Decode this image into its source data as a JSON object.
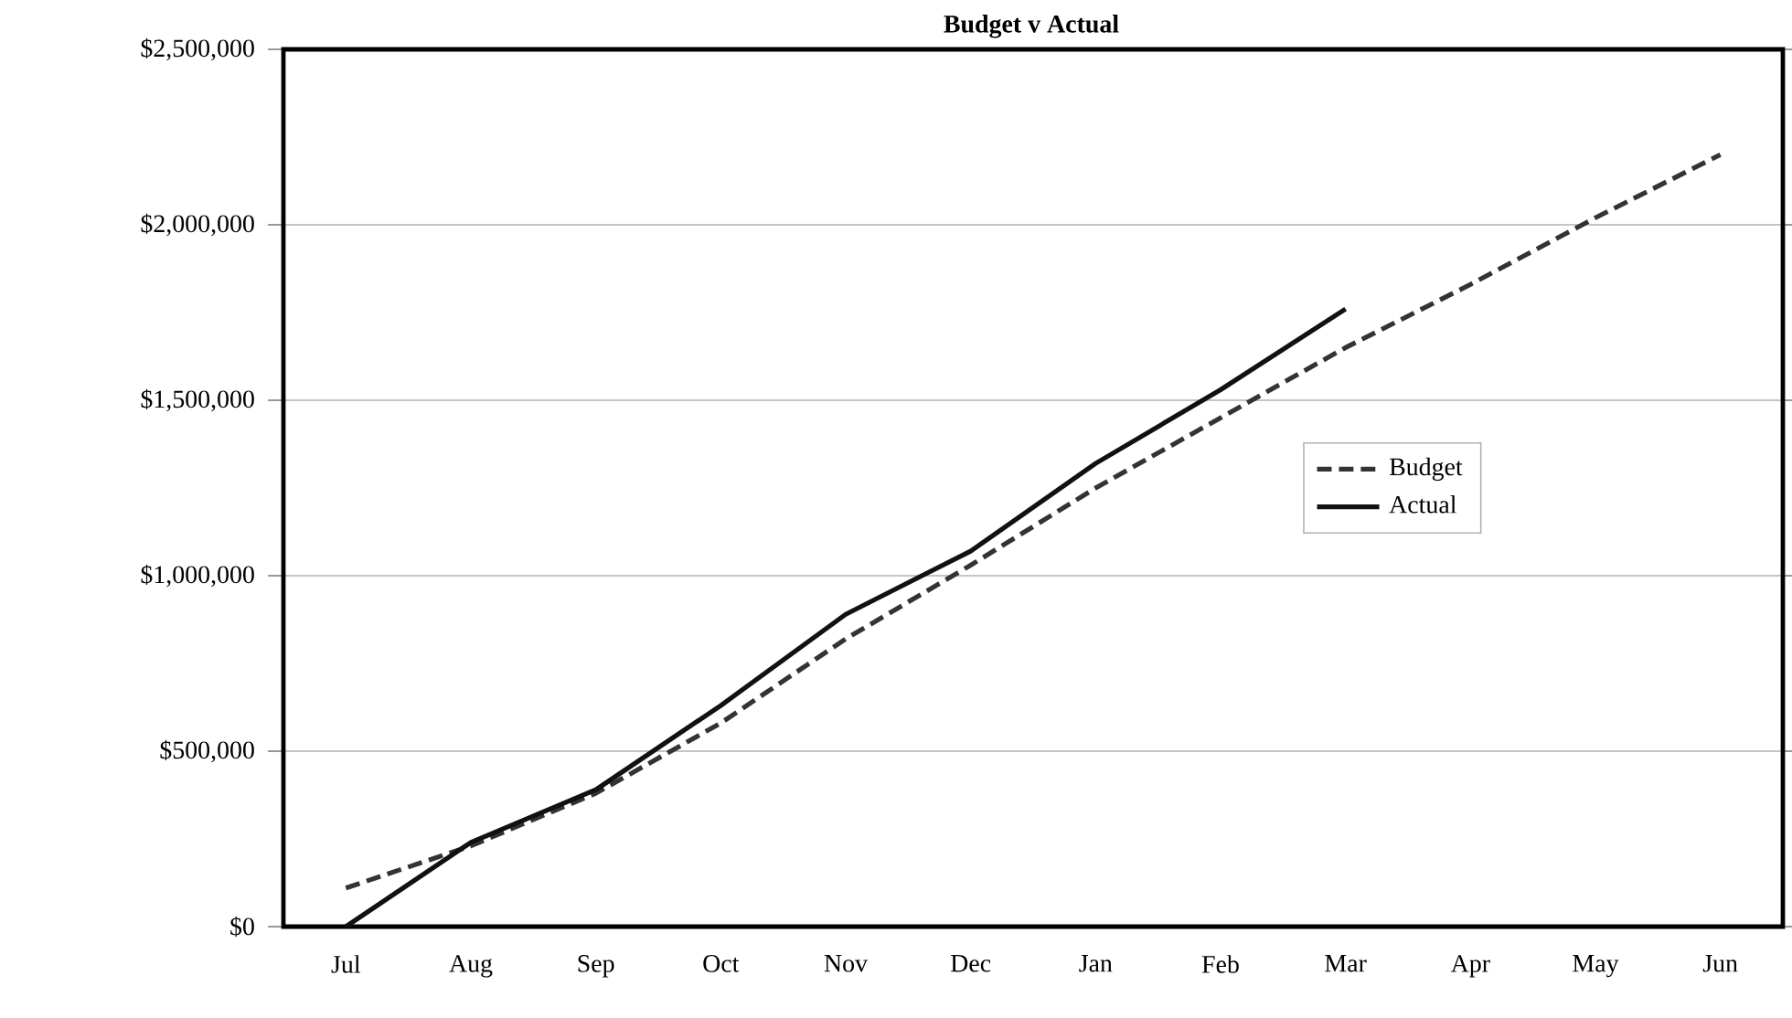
{
  "chart_data": {
    "type": "line",
    "title": "Budget v Actual",
    "categories": [
      "Jul",
      "Aug",
      "Sep",
      "Oct",
      "Nov",
      "Dec",
      "Jan",
      "Feb",
      "Mar",
      "Apr",
      "May",
      "Jun"
    ],
    "series": [
      {
        "name": "Budget",
        "color": "#333333",
        "line_style": "dashed",
        "values": [
          110000,
          230000,
          380000,
          580000,
          820000,
          1030000,
          1250000,
          1450000,
          1650000,
          1830000,
          2020000,
          2200000
        ]
      },
      {
        "name": "Actual",
        "color": "#111111",
        "line_style": "solid",
        "values": [
          0,
          240000,
          390000,
          630000,
          890000,
          1070000,
          1320000,
          1530000,
          1760000,
          null,
          null,
          null
        ]
      }
    ],
    "ylim": [
      0,
      2500000
    ],
    "yticks": [
      {
        "value": 0,
        "label": "$0"
      },
      {
        "value": 500000,
        "label": "$500,000"
      },
      {
        "value": 1000000,
        "label": "$1,000,000"
      },
      {
        "value": 1500000,
        "label": "$1,500,000"
      },
      {
        "value": 2000000,
        "label": "$2,000,000"
      },
      {
        "value": 2500000,
        "label": "$2,500,000"
      }
    ],
    "grid": "y",
    "legend": "right",
    "marker": "none"
  }
}
